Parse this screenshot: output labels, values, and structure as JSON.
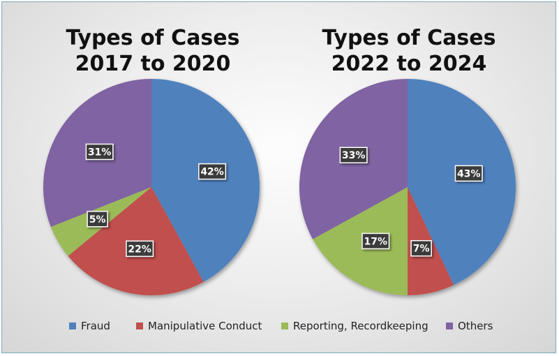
{
  "colors": {
    "Fraud": "#4f81bd",
    "Manipulative Conduct": "#c0504d",
    "Reporting, Recordkeeping": "#9bbb59",
    "Others": "#8064a2"
  },
  "legend": [
    "Fraud",
    "Manipulative Conduct",
    "Reporting, Recordkeeping",
    "Others"
  ],
  "chart_data": [
    {
      "type": "pie",
      "title_lines": [
        "Types of Cases",
        "2017 to 2020"
      ],
      "categories": [
        "Fraud",
        "Manipulative Conduct",
        "Reporting, Recordkeeping",
        "Others"
      ],
      "values": [
        42,
        22,
        5,
        31
      ],
      "labels": [
        "42%",
        "22%",
        "5%",
        "31%"
      ]
    },
    {
      "type": "pie",
      "title_lines": [
        "Types of Cases",
        "2022 to 2024"
      ],
      "categories": [
        "Fraud",
        "Manipulative Conduct",
        "Reporting, Recordkeeping",
        "Others"
      ],
      "values": [
        43,
        7,
        17,
        33
      ],
      "labels": [
        "43%",
        "7%",
        "17%",
        "33%"
      ]
    }
  ]
}
